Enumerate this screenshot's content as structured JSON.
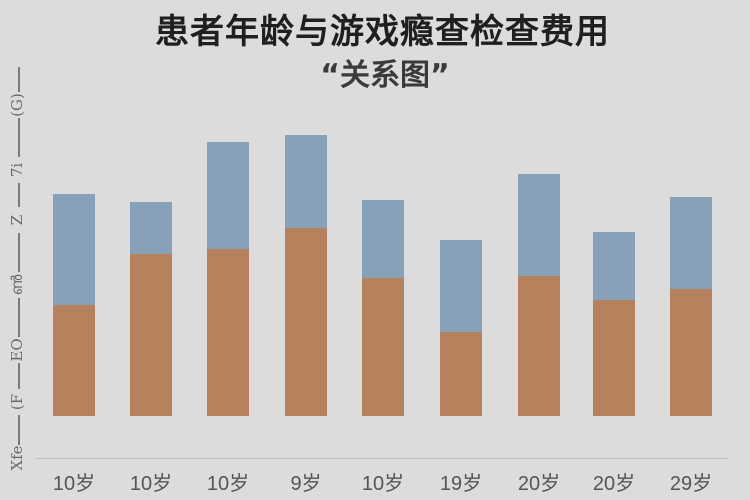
{
  "header": {
    "title": "患者年龄与游戏瘾查检查费用",
    "subtitle": "“关系图”"
  },
  "y_axis": {
    "tick_glyphs": [
      "(G)",
      "7i",
      "Z",
      "ൺ",
      "EO",
      "(F",
      "Xfe"
    ]
  },
  "colors": {
    "background": "#dcdcdc",
    "series_top": "#87a2b8",
    "series_bottom": "#b5825d"
  },
  "chart_data": {
    "type": "bar",
    "stacked": true,
    "title": "患者年龄与游戏瘾查检查费用",
    "subtitle": "“关系图”",
    "xlabel": "",
    "ylabel": "",
    "categories": [
      "10岁",
      "10岁",
      "10岁",
      "9岁",
      "10岁",
      "19岁",
      "20岁",
      "20岁",
      "29岁"
    ],
    "series": [
      {
        "name": "bottom (orange)",
        "color": "#b5825d",
        "values": [
          111,
          162,
          167,
          188,
          138,
          84,
          140,
          116,
          127
        ]
      },
      {
        "name": "top (blue)",
        "color": "#87a2b8",
        "values": [
          111,
          52,
          107,
          93,
          78,
          92,
          102,
          68,
          92
        ]
      }
    ],
    "totals": [
      222,
      214,
      274,
      281,
      216,
      176,
      242,
      184,
      219
    ],
    "ylim": [
      0,
      391
    ],
    "y_tick_labels_legible": false,
    "grid": false,
    "legend": "none"
  }
}
